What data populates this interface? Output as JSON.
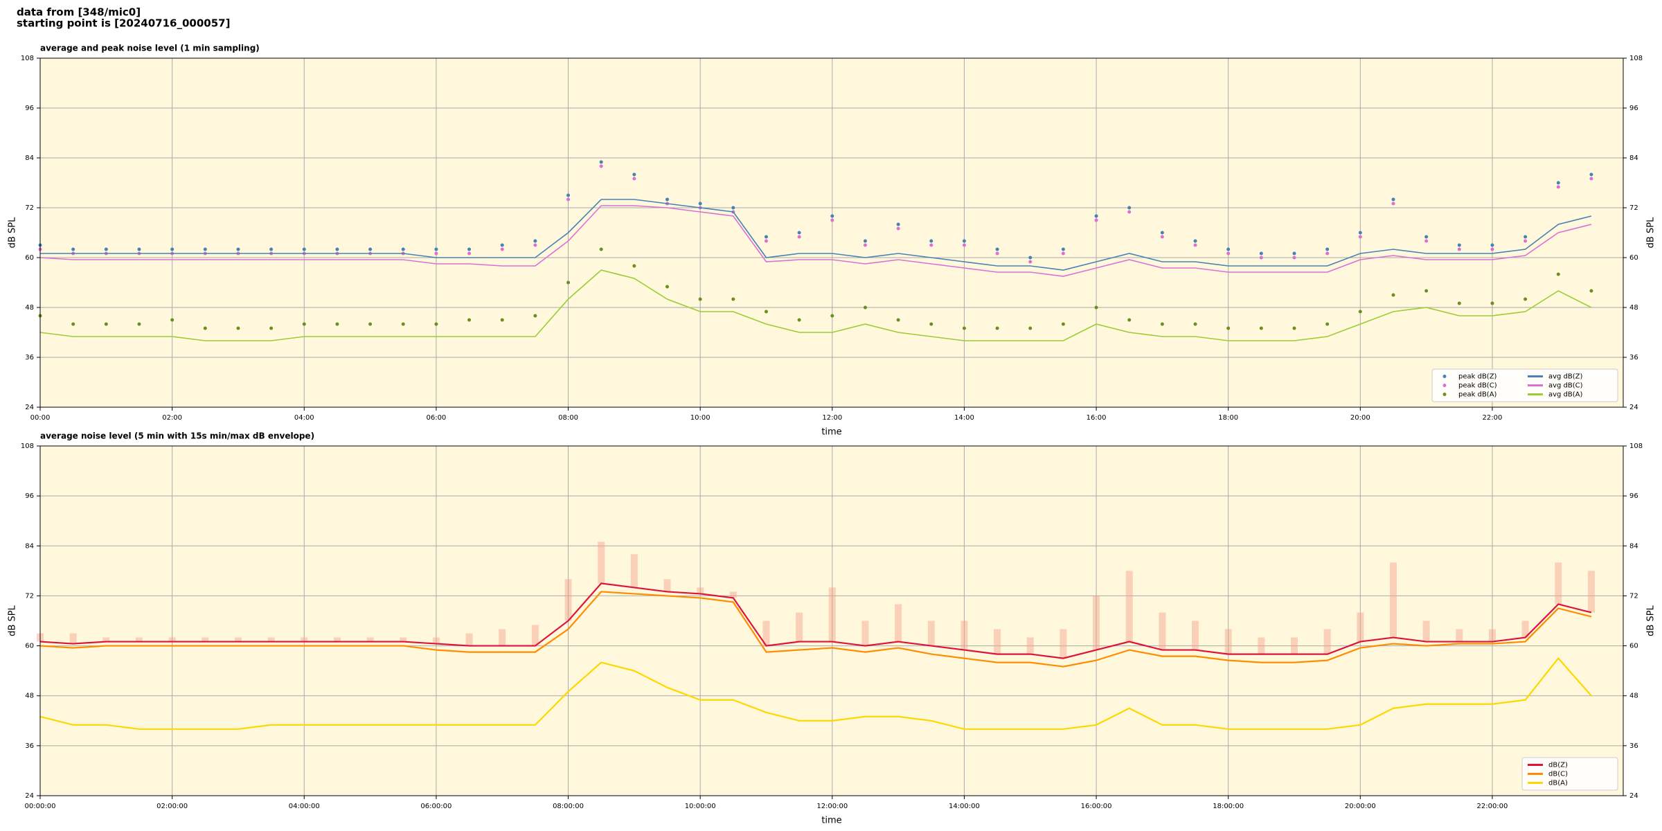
{
  "header": {
    "lines": [
      "data from [348/mic0]",
      "starting point is [20240716_000057]"
    ]
  },
  "chart_data": [
    {
      "type": "line",
      "title": "average and peak noise level (1 min sampling)",
      "x_label": "time",
      "y_label": "dB SPL",
      "x": [
        "00:00",
        "00:30",
        "01:00",
        "01:30",
        "02:00",
        "02:30",
        "03:00",
        "03:30",
        "04:00",
        "04:30",
        "05:00",
        "05:30",
        "06:00",
        "06:30",
        "07:00",
        "07:30",
        "08:00",
        "08:30",
        "09:00",
        "09:30",
        "10:00",
        "10:30",
        "11:00",
        "11:30",
        "12:00",
        "12:30",
        "13:00",
        "13:30",
        "14:00",
        "14:30",
        "15:00",
        "15:30",
        "16:00",
        "16:30",
        "17:00",
        "17:30",
        "18:00",
        "18:30",
        "19:00",
        "19:30",
        "20:00",
        "20:30",
        "21:00",
        "21:30",
        "22:00",
        "22:30",
        "23:00",
        "23:30"
      ],
      "xlim": [
        "00:00",
        "23:59"
      ],
      "xticks": [
        "00:00",
        "02:00",
        "04:00",
        "06:00",
        "08:00",
        "10:00",
        "12:00",
        "14:00",
        "16:00",
        "18:00",
        "20:00",
        "22:00"
      ],
      "ylim": [
        24,
        108
      ],
      "yticks": [
        24,
        36,
        48,
        60,
        72,
        84,
        96,
        108
      ],
      "grid": true,
      "legend": "lower right",
      "scatter_series": [
        {
          "name": "peak dB(Z)",
          "color": "#4682b4",
          "values": [
            63,
            62,
            62,
            62,
            62,
            62,
            62,
            62,
            62,
            62,
            62,
            62,
            62,
            62,
            63,
            64,
            75,
            83,
            80,
            74,
            73,
            72,
            65,
            66,
            70,
            64,
            68,
            64,
            64,
            62,
            60,
            62,
            70,
            72,
            66,
            64,
            62,
            61,
            61,
            62,
            66,
            74,
            65,
            63,
            63,
            65,
            78,
            80
          ]
        },
        {
          "name": "peak dB(C)",
          "color": "#da70d6",
          "values": [
            62,
            61,
            61,
            61,
            61,
            61,
            61,
            61,
            61,
            61,
            61,
            61,
            61,
            61,
            62,
            63,
            74,
            82,
            79,
            73,
            72,
            71,
            64,
            65,
            69,
            63,
            67,
            63,
            63,
            61,
            59,
            61,
            69,
            71,
            65,
            63,
            61,
            60,
            60,
            61,
            65,
            73,
            64,
            62,
            62,
            64,
            77,
            79
          ]
        },
        {
          "name": "peak dB(A)",
          "color": "#6b8e23",
          "values": [
            46,
            44,
            44,
            44,
            45,
            43,
            43,
            43,
            44,
            44,
            44,
            44,
            44,
            45,
            45,
            46,
            54,
            62,
            58,
            53,
            50,
            50,
            47,
            45,
            46,
            48,
            45,
            44,
            43,
            43,
            43,
            44,
            48,
            45,
            44,
            44,
            43,
            43,
            43,
            44,
            47,
            51,
            52,
            49,
            49,
            50,
            56,
            52
          ]
        }
      ],
      "series": [
        {
          "name": "avg dB(Z)",
          "color": "#4682b4",
          "values": [
            61,
            61,
            61,
            61,
            61,
            61,
            61,
            61,
            61,
            61,
            61,
            61,
            60,
            60,
            60,
            60,
            66,
            74,
            74,
            73,
            72,
            71,
            60,
            61,
            61,
            60,
            61,
            60,
            59,
            58,
            58,
            57,
            59,
            61,
            59,
            59,
            58,
            58,
            58,
            58,
            61,
            62,
            61,
            61,
            61,
            62,
            68,
            70
          ]
        },
        {
          "name": "avg dB(C)",
          "color": "#da70d6",
          "values": [
            60,
            59.5,
            59.5,
            59.5,
            59.5,
            59.5,
            59.5,
            59.5,
            59.5,
            59.5,
            59.5,
            59.5,
            58.5,
            58.5,
            58,
            58,
            64,
            72.5,
            72.5,
            72,
            71,
            70,
            59,
            59.5,
            59.5,
            58.5,
            59.5,
            58.5,
            57.5,
            56.5,
            56.5,
            55.5,
            57.5,
            59.5,
            57.5,
            57.5,
            56.5,
            56.5,
            56.5,
            56.5,
            59.5,
            60.5,
            59.5,
            59.5,
            59.5,
            60.5,
            66,
            68
          ]
        },
        {
          "name": "avg dB(A)",
          "color": "#9acd32",
          "values": [
            42,
            41,
            41,
            41,
            41,
            40,
            40,
            40,
            41,
            41,
            41,
            41,
            41,
            41,
            41,
            41,
            50,
            57,
            55,
            50,
            47,
            47,
            44,
            42,
            42,
            44,
            42,
            41,
            40,
            40,
            40,
            40,
            44,
            42,
            41,
            41,
            40,
            40,
            40,
            41,
            44,
            47,
            48,
            46,
            46,
            47,
            52,
            48
          ]
        }
      ]
    },
    {
      "type": "line",
      "title": "average noise level (5 min with 15s min/max dB envelope)",
      "x_label": "time",
      "y_label": "dB SPL",
      "x": [
        "00:00:00",
        "00:30:00",
        "01:00:00",
        "01:30:00",
        "02:00:00",
        "02:30:00",
        "03:00:00",
        "03:30:00",
        "04:00:00",
        "04:30:00",
        "05:00:00",
        "05:30:00",
        "06:00:00",
        "06:30:00",
        "07:00:00",
        "07:30:00",
        "08:00:00",
        "08:30:00",
        "09:00:00",
        "09:30:00",
        "10:00:00",
        "10:30:00",
        "11:00:00",
        "11:30:00",
        "12:00:00",
        "12:30:00",
        "13:00:00",
        "13:30:00",
        "14:00:00",
        "14:30:00",
        "15:00:00",
        "15:30:00",
        "16:00:00",
        "16:30:00",
        "17:00:00",
        "17:30:00",
        "18:00:00",
        "18:30:00",
        "19:00:00",
        "19:30:00",
        "20:00:00",
        "20:30:00",
        "21:00:00",
        "21:30:00",
        "22:00:00",
        "22:30:00",
        "23:00:00",
        "23:30:00"
      ],
      "xlim": [
        "00:00:00",
        "23:59:00"
      ],
      "xticks": [
        "00:00:00",
        "02:00:00",
        "04:00:00",
        "06:00:00",
        "08:00:00",
        "10:00:00",
        "12:00:00",
        "14:00:00",
        "16:00:00",
        "18:00:00",
        "20:00:00",
        "22:00:00"
      ],
      "ylim": [
        24,
        108
      ],
      "yticks": [
        24,
        36,
        48,
        60,
        72,
        84,
        96,
        108
      ],
      "grid": true,
      "legend": "lower right",
      "envelope": {
        "color": "#f4a08c",
        "values": [
          63,
          63,
          62,
          62,
          62,
          62,
          62,
          62,
          62,
          62,
          62,
          62,
          62,
          63,
          64,
          65,
          76,
          85,
          82,
          76,
          74,
          73,
          66,
          68,
          74,
          66,
          70,
          66,
          66,
          64,
          62,
          64,
          72,
          78,
          68,
          66,
          64,
          62,
          62,
          64,
          68,
          80,
          66,
          64,
          64,
          66,
          80,
          78
        ]
      },
      "series": [
        {
          "name": "dB(Z)",
          "color": "#dc143c",
          "values": [
            61,
            60.5,
            61,
            61,
            61,
            61,
            61,
            61,
            61,
            61,
            61,
            61,
            60.5,
            60,
            60,
            60,
            66,
            75,
            74,
            73,
            72.5,
            71.5,
            60,
            61,
            61,
            60,
            61,
            60,
            59,
            58,
            58,
            57,
            59,
            61,
            59,
            59,
            58,
            58,
            58,
            58,
            61,
            62,
            61,
            61,
            61,
            62,
            70,
            68
          ]
        },
        {
          "name": "dB(C)",
          "color": "#ff8c00",
          "values": [
            60,
            59.5,
            60,
            60,
            60,
            60,
            60,
            60,
            60,
            60,
            60,
            60,
            59,
            58.5,
            58.5,
            58.5,
            64,
            73,
            72.5,
            72,
            71.5,
            70.5,
            58.5,
            59,
            59.5,
            58.5,
            59.5,
            58,
            57,
            56,
            56,
            55,
            56.5,
            59,
            57.5,
            57.5,
            56.5,
            56,
            56,
            56.5,
            59.5,
            60.5,
            60,
            60.5,
            60.5,
            61,
            69,
            67
          ]
        },
        {
          "name": "dB(A)",
          "color": "#ffd700",
          "values": [
            43,
            41,
            41,
            40,
            40,
            40,
            40,
            41,
            41,
            41,
            41,
            41,
            41,
            41,
            41,
            41,
            49,
            56,
            54,
            50,
            47,
            47,
            44,
            42,
            42,
            43,
            43,
            42,
            40,
            40,
            40,
            40,
            41,
            45,
            41,
            41,
            40,
            40,
            40,
            40,
            41,
            45,
            46,
            46,
            46,
            47,
            57,
            48
          ]
        }
      ]
    }
  ]
}
